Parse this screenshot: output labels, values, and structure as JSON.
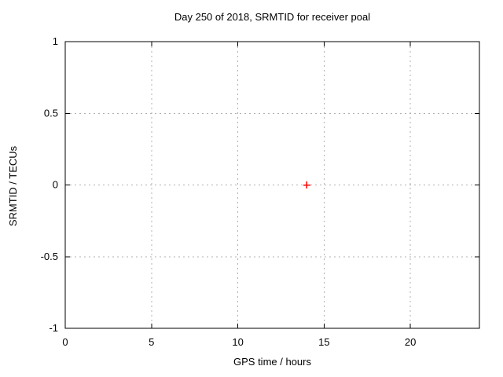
{
  "chart_data": {
    "type": "scatter",
    "title": "Day 250 of 2018, SRMTID for receiver poal",
    "xlabel": "GPS time / hours",
    "ylabel": "SRMTID / TECUs",
    "xlim": [
      0,
      24
    ],
    "ylim": [
      -1,
      1
    ],
    "xticks": [
      0,
      5,
      10,
      15,
      20
    ],
    "yticks": [
      -1,
      -0.5,
      0,
      0.5,
      1
    ],
    "grid": true,
    "legend": "none",
    "colors": {
      "grid": "#b0b0b0",
      "border": "#000000",
      "background": "#ffffff",
      "text": "#000000"
    },
    "series": [
      {
        "name": "SRMTID",
        "marker": "plus",
        "color": "#ff0000",
        "points": [
          [
            14,
            0
          ]
        ]
      }
    ]
  }
}
